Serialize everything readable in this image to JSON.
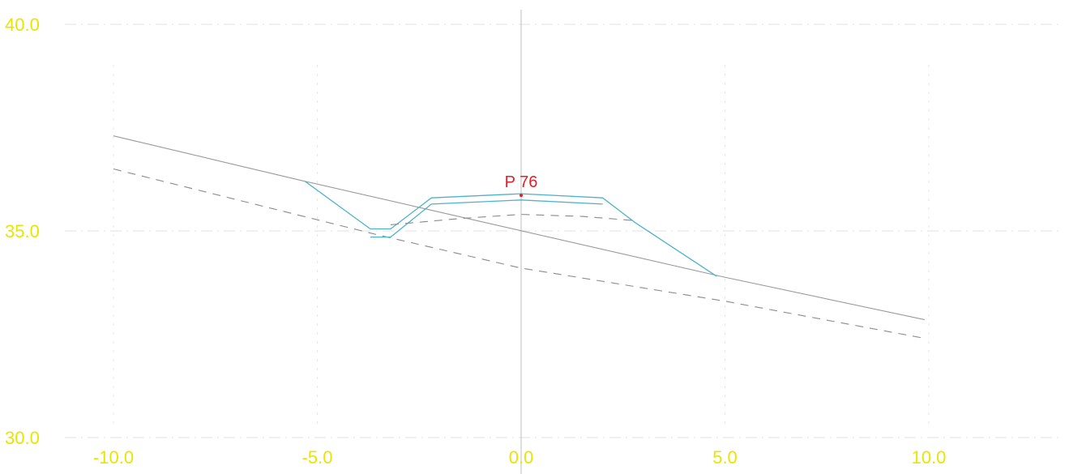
{
  "chart_data": {
    "type": "line",
    "x_ticks": [
      "-10.0",
      "-5.0",
      "0.0",
      "5.0",
      "10.0"
    ],
    "x_tick_values": [
      -10,
      -5,
      0,
      5,
      10
    ],
    "y_ticks": [
      "30.0",
      "35.0",
      "40.0"
    ],
    "y_tick_values": [
      30,
      35,
      40
    ],
    "xlim": [
      -11.5,
      13.5
    ],
    "ylim": [
      30,
      40
    ],
    "grid": true,
    "colors": {
      "tick_label": "#e6e600",
      "grid": "#e6e6e6",
      "axis_center": "#bdbdbd",
      "ground": "#9a9a9a",
      "ground_dashed": "#8a8a8a",
      "section": "#4fb3c8",
      "point": "#e0202a"
    },
    "point_label": "P 76",
    "point": {
      "x": 0.0,
      "y": 35.9
    },
    "series": [
      {
        "style": "solid",
        "points": [
          [
            -10.0,
            37.3
          ],
          [
            -5.3,
            36.2
          ],
          [
            4.9,
            33.9
          ],
          [
            9.9,
            32.85
          ]
        ]
      },
      {
        "style": "dashed",
        "points": [
          [
            -10.0,
            36.5
          ],
          [
            -3.5,
            34.9
          ],
          [
            0.0,
            34.1
          ],
          [
            5.0,
            33.3
          ],
          [
            9.9,
            32.4
          ]
        ]
      },
      {
        "style": "section",
        "points": [
          [
            -5.3,
            36.2
          ],
          [
            -3.7,
            35.05
          ],
          [
            -3.2,
            35.05
          ],
          [
            -2.2,
            35.8
          ],
          [
            0.0,
            35.9
          ],
          [
            2.0,
            35.8
          ],
          [
            2.8,
            35.2
          ],
          [
            4.8,
            33.9
          ]
        ]
      },
      {
        "style": "section",
        "points": [
          [
            -3.7,
            34.85
          ],
          [
            -3.2,
            34.85
          ],
          [
            -2.2,
            35.65
          ],
          [
            0.0,
            35.75
          ],
          [
            2.0,
            35.65
          ]
        ]
      },
      {
        "style": "dashed-subgrade",
        "points": [
          [
            -3.2,
            35.15
          ],
          [
            -1.5,
            35.3
          ],
          [
            0.0,
            35.4
          ],
          [
            1.5,
            35.35
          ],
          [
            2.8,
            35.25
          ]
        ]
      }
    ]
  }
}
